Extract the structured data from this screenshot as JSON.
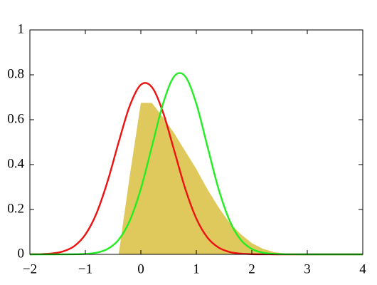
{
  "chart_data": {
    "type": "line",
    "x": [
      -2,
      -1.8,
      -1.6,
      -1.4,
      -1.2,
      -1,
      -0.8,
      -0.6,
      -0.4,
      -0.2,
      0,
      0.2,
      0.4,
      0.6,
      0.8,
      1,
      1.2,
      1.4,
      1.6,
      1.8,
      2,
      2.2,
      2.4,
      2.6,
      2.8,
      3,
      3.2,
      3.4,
      3.6,
      3.8,
      4
    ],
    "series": [
      {
        "color": "#e0c95c",
        "fill": true,
        "values": [
          0,
          0,
          0,
          0,
          0,
          0,
          0,
          0,
          0,
          0.35,
          0.675,
          0.675,
          0.61,
          0.54,
          0.46,
          0.38,
          0.29,
          0.21,
          0.14,
          0.09,
          0.05,
          0.025,
          0.01,
          0.004,
          0.001,
          0,
          0,
          0,
          0,
          0,
          0
        ]
      },
      {
        "color": "#ee1111",
        "fill": false,
        "values": [
          0.0003,
          0.0011,
          0.0041,
          0.0133,
          0.0368,
          0.0882,
          0.1824,
          0.325,
          0.4993,
          0.6617,
          0.7559,
          0.7449,
          0.6327,
          0.4637,
          0.2929,
          0.1596,
          0.075,
          0.0304,
          0.0106,
          0.0032,
          0.0008,
          0.0002,
          0,
          0,
          0,
          0,
          0,
          0,
          0,
          0,
          0
        ]
      },
      {
        "color": "#22ee22",
        "fill": false,
        "values": [
          0,
          0,
          0,
          0.0001,
          0.0004,
          0.002,
          0.0075,
          0.024,
          0.065,
          0.15,
          0.292,
          0.481,
          0.671,
          0.793,
          0.793,
          0.671,
          0.481,
          0.292,
          0.15,
          0.065,
          0.024,
          0.0075,
          0.002,
          0.0004,
          0.0001,
          0,
          0,
          0,
          0,
          0,
          0
        ]
      }
    ],
    "xlim": [
      -2,
      4
    ],
    "xticks": [
      {
        "value": -2,
        "label": "−2"
      },
      {
        "value": -1,
        "label": "−1"
      },
      0,
      1,
      2,
      3,
      4
    ],
    "ylim": [
      0,
      1
    ],
    "yticks": [
      0,
      0.2,
      0.4,
      0.6,
      0.8,
      1
    ],
    "grid": false
  }
}
